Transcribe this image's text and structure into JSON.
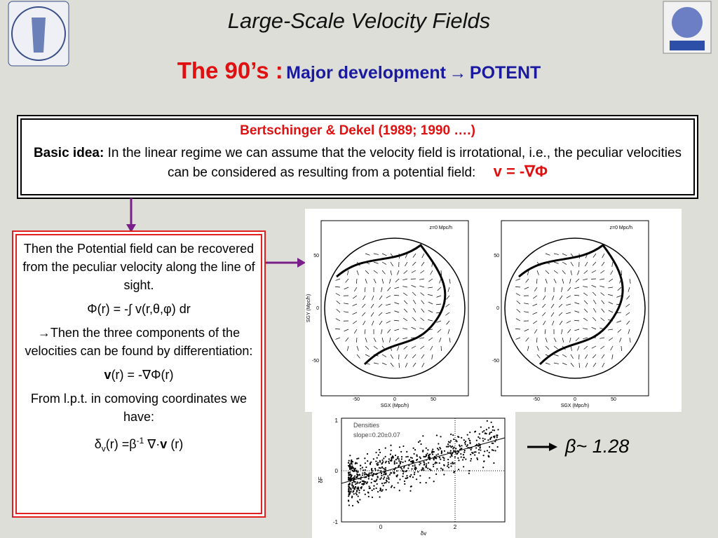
{
  "header": {
    "title": "Large-Scale Velocity Fields",
    "subtitle_lead": "The 90’s :",
    "subtitle_rest": "Major development",
    "subtitle_arrow": "→",
    "subtitle_end": "POTENT"
  },
  "box": {
    "reference": "Bertschinger & Dekel (1989; 1990 ….)",
    "lead": "Basic idea:",
    "text": "In the linear regime we can assume that the velocity field is irrotational, i.e., the peculiar velocities can be considered as resulting from a potential field:",
    "formula": "v = -∇Φ"
  },
  "panel": {
    "p1": "Then the Potential field can be recovered from the peculiar velocity along the line of sight.",
    "f1": "Φ(r) = -∫ v(r,θ,φ) dr",
    "p2": "→Then the three components of the velocities can be found by differentiation:",
    "f2_bold": "v",
    "f2_rest": "(r) = -∇Φ(r)",
    "p3": "From l.p.t. in comoving coordinates we have:",
    "f3_delta": "δ",
    "f3_sub": "v",
    "f3_mid": "(r) =β",
    "f3_sup": "-1",
    "f3_op": " ∇·",
    "f3_bold": "v",
    "f3_end": " (r)"
  },
  "result": "β~ 1.28",
  "maps": [
    {
      "label": "z=0 Mpc/h",
      "xlabel": "SGX (Mpc/h)",
      "ylabel": "SGY (Mpc/h)",
      "xticks": [
        "-50",
        "0",
        "50"
      ],
      "yticks": [
        "50",
        "0",
        "-50"
      ]
    },
    {
      "label": "z=0 Mpc/h",
      "xlabel": "SGX (Mpc/h)",
      "xticks": [
        "-50",
        "0",
        "50"
      ],
      "yticks": [
        "50",
        "0",
        "-50"
      ]
    }
  ],
  "scatter": {
    "legend": [
      "Densities",
      "slope=0.20±0.07"
    ],
    "xlabel": "δv",
    "ylabel": "δF",
    "xticks": [
      "0",
      "2"
    ],
    "yticks": [
      "1",
      "0",
      "-1"
    ]
  }
}
